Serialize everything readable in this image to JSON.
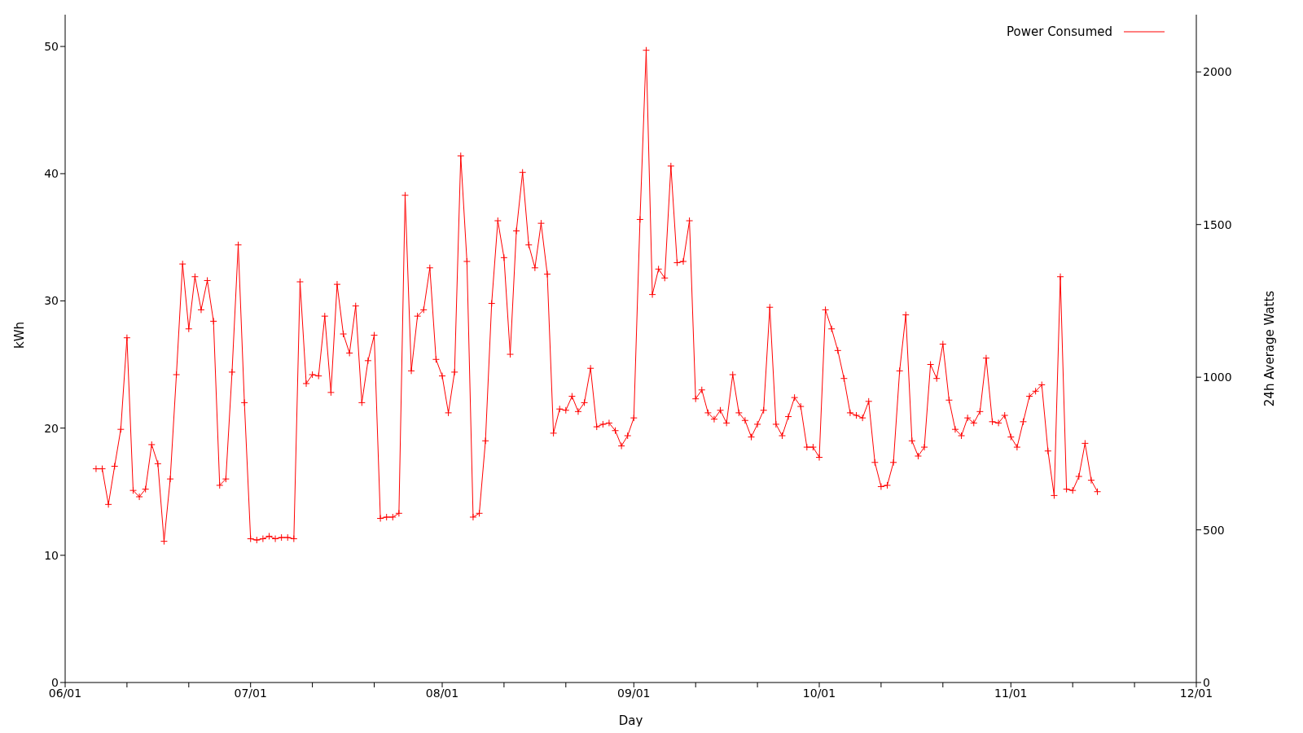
{
  "chart_data": {
    "type": "line",
    "xlabel": "Day",
    "ylabel": "kWh",
    "y2label": "24h Average Watts",
    "x": [
      "--06-06",
      "--06-07",
      "--06-08",
      "--06-09",
      "--06-10",
      "--06-11",
      "--06-12",
      "--06-13",
      "--06-14",
      "--06-15",
      "--06-16",
      "--06-17",
      "--06-18",
      "--06-19",
      "--06-20",
      "--06-21",
      "--06-22",
      "--06-23",
      "--06-24",
      "--06-25",
      "--06-26",
      "--06-27",
      "--06-28",
      "--06-29",
      "--06-30",
      "--07-01",
      "--07-02",
      "--07-03",
      "--07-04",
      "--07-05",
      "--07-06",
      "--07-07",
      "--07-08",
      "--07-09",
      "--07-10",
      "--07-11",
      "--07-12",
      "--07-13",
      "--07-14",
      "--07-15",
      "--07-16",
      "--07-17",
      "--07-18",
      "--07-19",
      "--07-20",
      "--07-21",
      "--07-22",
      "--07-23",
      "--07-24",
      "--07-25",
      "--07-26",
      "--07-27",
      "--07-28",
      "--07-29",
      "--07-30",
      "--07-31",
      "--08-01",
      "--08-02",
      "--08-03",
      "--08-04",
      "--08-05",
      "--08-06",
      "--08-07",
      "--08-08",
      "--08-09",
      "--08-10",
      "--08-11",
      "--08-12",
      "--08-13",
      "--08-14",
      "--08-15",
      "--08-16",
      "--08-17",
      "--08-18",
      "--08-19",
      "--08-20",
      "--08-21",
      "--08-22",
      "--08-23",
      "--08-24",
      "--08-25",
      "--08-26",
      "--08-27",
      "--08-28",
      "--08-29",
      "--08-30",
      "--08-31",
      "--09-01",
      "--09-02",
      "--09-03",
      "--09-04",
      "--09-05",
      "--09-06",
      "--09-07",
      "--09-08",
      "--09-09",
      "--09-10",
      "--09-11",
      "--09-12",
      "--09-13",
      "--09-14",
      "--09-15",
      "--09-16",
      "--09-17",
      "--09-18",
      "--09-19",
      "--09-20",
      "--09-21",
      "--09-22",
      "--09-23",
      "--09-24",
      "--09-25",
      "--09-26",
      "--09-27",
      "--09-28",
      "--09-29",
      "--09-30",
      "--10-01",
      "--10-02",
      "--10-03",
      "--10-04",
      "--10-05",
      "--10-06",
      "--10-07",
      "--10-08",
      "--10-09",
      "--10-10",
      "--10-11",
      "--10-12",
      "--10-13",
      "--10-14",
      "--10-15",
      "--10-16",
      "--10-17",
      "--10-18",
      "--10-19",
      "--10-20",
      "--10-21",
      "--10-22",
      "--10-23",
      "--10-24",
      "--10-25",
      "--10-26",
      "--10-27",
      "--10-28",
      "--10-29",
      "--10-30",
      "--10-31",
      "--11-01",
      "--11-02",
      "--11-03",
      "--11-04",
      "--11-05",
      "--11-06",
      "--11-07",
      "--11-08",
      "--11-09",
      "--11-10",
      "--11-11",
      "--11-12",
      "--11-13",
      "--11-14",
      "--11-15"
    ],
    "series": [
      {
        "name": "Power Consumed",
        "color": "#ff0000",
        "values": [
          16.8,
          16.8,
          14.0,
          17.0,
          19.9,
          27.1,
          15.1,
          14.6,
          15.2,
          18.7,
          17.2,
          11.1,
          16.0,
          24.2,
          32.9,
          27.8,
          31.9,
          29.3,
          31.6,
          28.4,
          15.5,
          16.0,
          24.4,
          34.4,
          22.0,
          11.3,
          11.2,
          11.3,
          11.5,
          11.3,
          11.4,
          11.4,
          11.3,
          31.5,
          23.5,
          24.2,
          24.1,
          28.8,
          22.8,
          31.3,
          27.4,
          25.9,
          29.6,
          22.0,
          25.3,
          27.3,
          12.9,
          13.0,
          13.0,
          13.3,
          38.3,
          24.5,
          28.8,
          29.3,
          32.6,
          25.4,
          24.1,
          21.2,
          24.4,
          41.4,
          33.1,
          13.0,
          13.3,
          19.0,
          29.8,
          36.3,
          33.4,
          25.8,
          35.5,
          40.1,
          34.4,
          32.6,
          36.1,
          32.1,
          19.6,
          21.5,
          21.4,
          22.5,
          21.3,
          22.0,
          24.7,
          20.1,
          20.3,
          20.4,
          19.8,
          18.6,
          19.4,
          20.8,
          36.4,
          49.7,
          30.5,
          32.5,
          31.8,
          40.6,
          33.0,
          33.1,
          36.3,
          22.3,
          23.0,
          21.2,
          20.7,
          21.4,
          20.4,
          24.2,
          21.2,
          20.6,
          19.3,
          20.3,
          21.4,
          29.5,
          20.3,
          19.4,
          20.9,
          22.4,
          21.7,
          18.5,
          18.5,
          17.7,
          29.3,
          27.8,
          26.1,
          23.9,
          21.2,
          21.0,
          20.8,
          22.1,
          17.3,
          15.4,
          15.5,
          17.3,
          24.5,
          28.9,
          19.0,
          17.8,
          18.5,
          25.0,
          23.9,
          26.6,
          22.2,
          19.9,
          19.4,
          20.8,
          20.4,
          21.3,
          25.5,
          20.5,
          20.4,
          21.0,
          19.3,
          18.5,
          20.5,
          22.5,
          22.9,
          23.4,
          18.2,
          14.7,
          31.9,
          15.2,
          15.1,
          16.2,
          18.8,
          15.9,
          15.0
        ]
      }
    ],
    "xlim": [
      "--06-01",
      "--12-01"
    ],
    "xticks": [
      {
        "value": "--06-01",
        "label": "06/01"
      },
      {
        "value": "--06-11",
        "label": null
      },
      {
        "value": "--06-21",
        "label": null
      },
      {
        "value": "--07-01",
        "label": "07/01"
      },
      {
        "value": "--07-11",
        "label": null
      },
      {
        "value": "--07-21",
        "label": null
      },
      {
        "value": "--08-01",
        "label": "08/01"
      },
      {
        "value": "--08-11",
        "label": null
      },
      {
        "value": "--08-21",
        "label": null
      },
      {
        "value": "--09-01",
        "label": "09/01"
      },
      {
        "value": "--09-11",
        "label": null
      },
      {
        "value": "--09-21",
        "label": null
      },
      {
        "value": "--10-01",
        "label": "10/01"
      },
      {
        "value": "--10-11",
        "label": null
      },
      {
        "value": "--10-21",
        "label": null
      },
      {
        "value": "--11-01",
        "label": "11/01"
      },
      {
        "value": "--11-11",
        "label": null
      },
      {
        "value": "--11-21",
        "label": null
      },
      {
        "value": "--12-01",
        "label": "12/01"
      }
    ],
    "ylim": [
      0,
      52.5
    ],
    "yticks": [
      0,
      10,
      20,
      30,
      40,
      50
    ],
    "y2lim": [
      0,
      2187.5
    ],
    "y2ticks": [
      0,
      500,
      1000,
      1500,
      2000
    ],
    "legend": "top right",
    "marker": "cross",
    "line_style": "solid",
    "grid": false
  }
}
